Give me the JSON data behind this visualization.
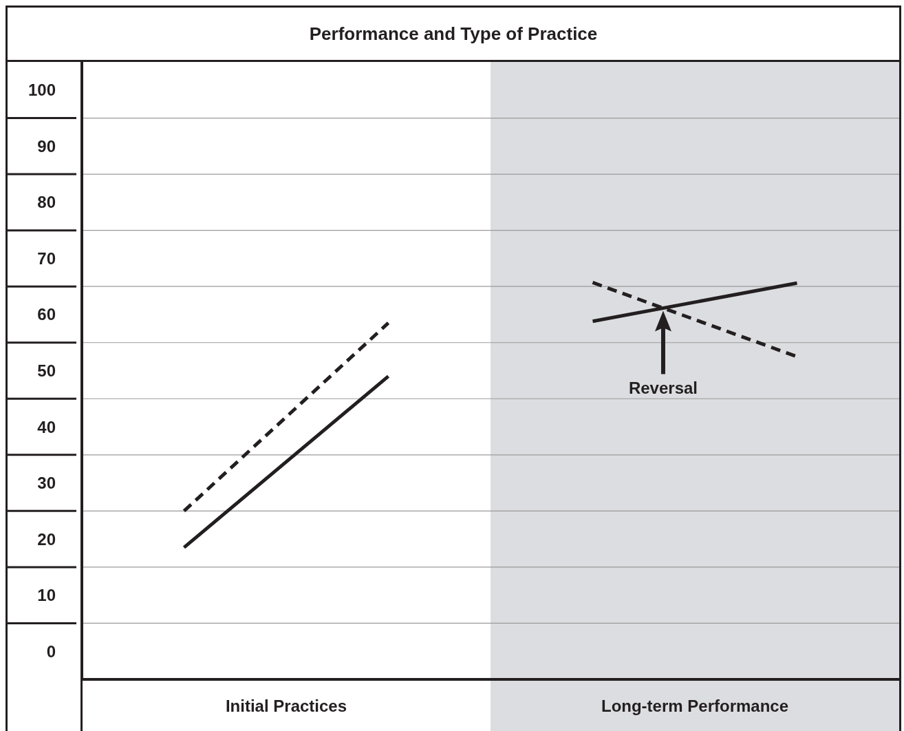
{
  "chart_data": {
    "type": "line",
    "title": "Performance and Type of Practice",
    "categories": [
      null,
      null,
      null,
      null
    ],
    "ylim": [
      -5,
      105
    ],
    "yticks": [
      0,
      {
        "value": 5,
        "label": null
      },
      10,
      {
        "value": 15,
        "label": null
      },
      20,
      {
        "value": 25,
        "label": null
      },
      30,
      {
        "value": 35,
        "label": null
      },
      40,
      {
        "value": 45,
        "label": null
      },
      50,
      {
        "value": 55,
        "label": null
      },
      60,
      {
        "value": 65,
        "label": null
      },
      70,
      {
        "value": 75,
        "label": null
      },
      80,
      {
        "value": 85,
        "label": null
      },
      90,
      {
        "value": 95,
        "label": null
      },
      100
    ],
    "series": [
      {
        "color": "#231f20",
        "line_style": "solid",
        "values": [
          18.5,
          49,
          null,
          null
        ]
      },
      {
        "color": "#231f20",
        "line_style": "dashed",
        "values": [
          25,
          58.5,
          null,
          null
        ]
      },
      {
        "color": "#231f20",
        "line_style": "solid",
        "values": [
          null,
          null,
          58.8,
          65.6
        ]
      },
      {
        "color": "#231f20",
        "line_style": "dashed",
        "values": [
          null,
          null,
          65.7,
          52.5
        ]
      }
    ],
    "annotations": [
      "Initial Practices",
      "Long-term Performance",
      "Reversal"
    ],
    "tick_labels": "y",
    "grid": "y",
    "marker": "none"
  }
}
